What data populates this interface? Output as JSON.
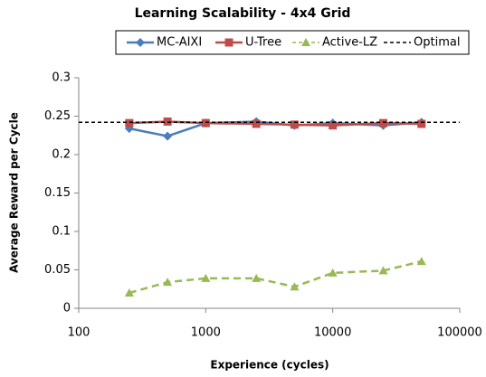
{
  "chart_data": {
    "type": "line",
    "title": "Learning Scalability - 4x4 Grid",
    "xlabel": "Experience (cycles)",
    "ylabel": "Average Reward per Cycle",
    "x": [
      250,
      500,
      1000,
      2500,
      5000,
      10000,
      25000,
      50000
    ],
    "series": [
      {
        "name": "MC-AIXI",
        "color": "#4a7ebb",
        "marker": "diamond",
        "dash": false,
        "values": [
          0.234,
          0.224,
          0.241,
          0.243,
          0.238,
          0.241,
          0.238,
          0.242
        ]
      },
      {
        "name": "U-Tree",
        "color": "#be4b48",
        "marker": "square",
        "dash": false,
        "values": [
          0.241,
          0.243,
          0.241,
          0.24,
          0.239,
          0.238,
          0.241,
          0.24
        ]
      },
      {
        "name": "Active-LZ",
        "color": "#98b954",
        "marker": "triangle",
        "dash": true,
        "values": [
          0.02,
          0.034,
          0.039,
          0.039,
          0.028,
          0.046,
          0.049,
          0.061
        ]
      },
      {
        "name": "Optimal",
        "color": "#000000",
        "marker": "none",
        "dash": true,
        "x": [
          100,
          100000
        ],
        "values": [
          0.242,
          0.242
        ]
      }
    ],
    "xlog": true,
    "xlim": [
      100,
      100000
    ],
    "xticks": [
      100,
      1000,
      10000,
      100000
    ],
    "ylim": [
      0,
      0.3
    ],
    "yticks": [
      0,
      0.05,
      0.1,
      0.15,
      0.2,
      0.25,
      0.3
    ],
    "grid": false,
    "legend": "top"
  }
}
